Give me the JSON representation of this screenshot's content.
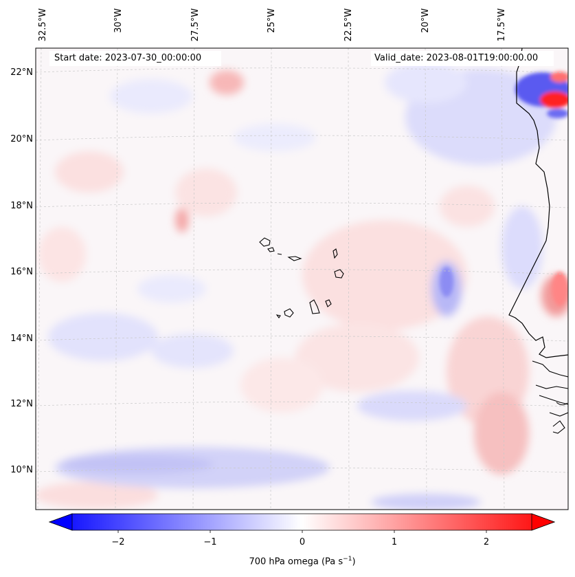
{
  "map": {
    "start_date_text": "Start date: 2023-07-30_00:00:00",
    "valid_date_text": "Valid_date: 2023-08-01T19:00:00.00",
    "lon_labels": [
      "32.5°W",
      "30°W",
      "27.5°W",
      "25°W",
      "22.5°W",
      "20°W",
      "17.5°W"
    ],
    "lat_labels": [
      "22°N",
      "20°N",
      "18°N",
      "16°N",
      "14°N",
      "12°N",
      "10°N"
    ],
    "field": "700 hPa omega",
    "colormap": "bwr",
    "coastline_color": "#000000",
    "gridline_color": "#c8c8c8"
  },
  "colorbar": {
    "label": "700 hPa omega (Pa s",
    "label_sup": "−1",
    "label_close": ")",
    "ticks": [
      "−2",
      "−1",
      "0",
      "1",
      "2"
    ],
    "range": [
      -2.75,
      2.75
    ],
    "extend": "both",
    "min_color": "#0000ff",
    "mid_color": "#ffffff",
    "max_color": "#ff0000"
  }
}
